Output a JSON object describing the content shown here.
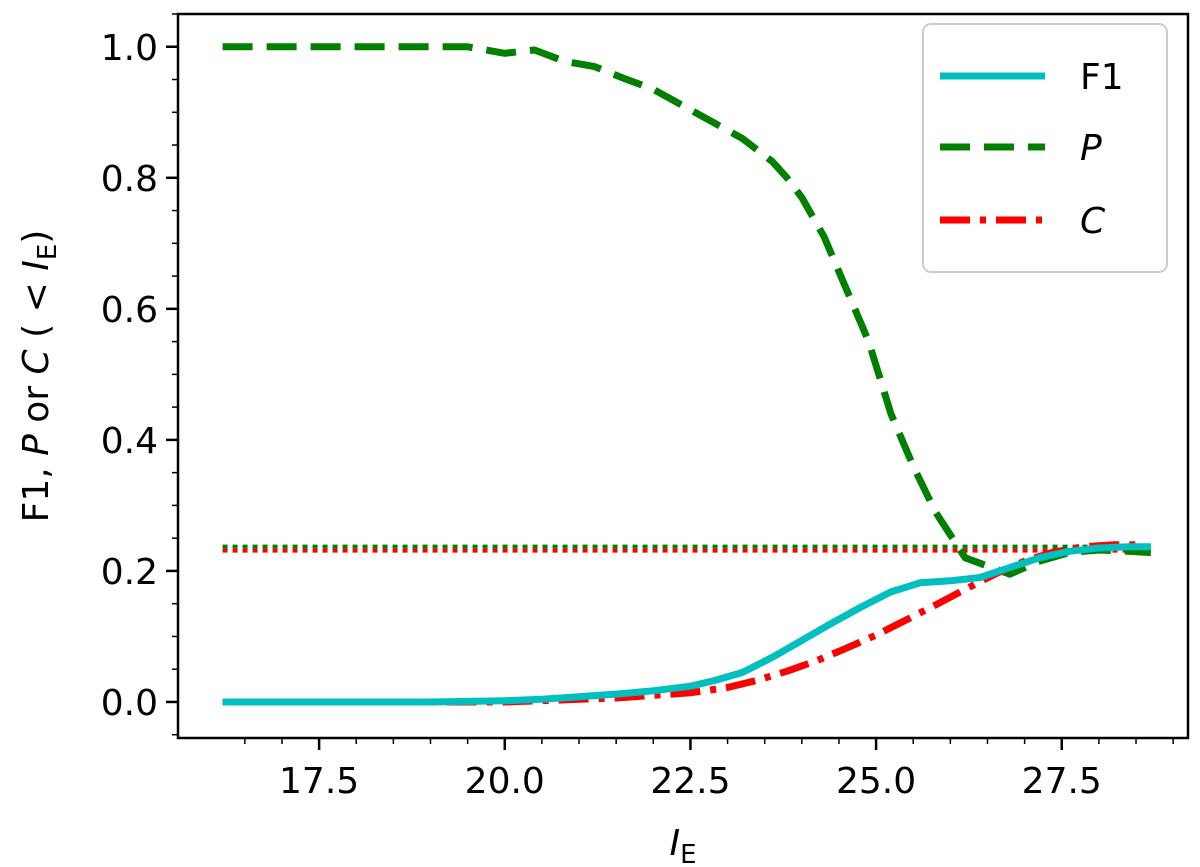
{
  "chart_data": {
    "type": "line",
    "xlabel": {
      "main": "I",
      "sub": "E"
    },
    "ylabel": {
      "p1": "F1, ",
      "p2": "P",
      "p3": " or ",
      "p4": "C",
      "p5": " ( < ",
      "p6": "I",
      "p7": "E",
      "p8": ")"
    },
    "xlim": [
      15.6,
      29.2
    ],
    "ylim": [
      -0.055,
      1.05
    ],
    "xticks": [
      17.5,
      20.0,
      22.5,
      25.0,
      27.5
    ],
    "xtick_labels": [
      "17.5",
      "20.0",
      "22.5",
      "25.0",
      "27.5"
    ],
    "yticks": [
      0.0,
      0.2,
      0.4,
      0.6,
      0.8,
      1.0
    ],
    "ytick_labels": [
      "0.0",
      "0.2",
      "0.4",
      "0.6",
      "0.8",
      "1.0"
    ],
    "grid": false,
    "legend_position": "top-right",
    "series": [
      {
        "name": "F1",
        "color": "#00bfbf",
        "style": "solid",
        "x": [
          16.2,
          17.0,
          18.0,
          19.0,
          20.0,
          20.5,
          21.0,
          21.5,
          22.0,
          22.5,
          22.8,
          23.2,
          23.6,
          24.0,
          24.4,
          24.8,
          25.2,
          25.6,
          26.0,
          26.4,
          26.8,
          27.2,
          27.6,
          28.0,
          28.4,
          28.7
        ],
        "y": [
          0.0,
          0.0,
          0.0,
          0.0,
          0.002,
          0.004,
          0.008,
          0.012,
          0.017,
          0.024,
          0.032,
          0.045,
          0.068,
          0.094,
          0.12,
          0.145,
          0.168,
          0.182,
          0.185,
          0.19,
          0.205,
          0.22,
          0.23,
          0.235,
          0.237,
          0.237
        ]
      },
      {
        "name": "P",
        "color": "#007f00",
        "style": "dashed",
        "x": [
          16.2,
          17.0,
          18.0,
          19.0,
          19.5,
          20.0,
          20.4,
          20.8,
          21.2,
          21.6,
          22.0,
          22.4,
          22.8,
          23.2,
          23.6,
          23.8,
          24.0,
          24.3,
          24.6,
          24.9,
          25.2,
          25.5,
          25.8,
          26.2,
          26.8,
          27.2,
          27.6,
          28.0,
          28.4,
          28.7
        ],
        "y": [
          1.0,
          1.0,
          1.0,
          1.0,
          1.0,
          0.99,
          0.995,
          0.978,
          0.97,
          0.952,
          0.935,
          0.91,
          0.885,
          0.86,
          0.825,
          0.8,
          0.77,
          0.71,
          0.63,
          0.55,
          0.44,
          0.36,
          0.29,
          0.22,
          0.195,
          0.215,
          0.228,
          0.232,
          0.23,
          0.228
        ]
      },
      {
        "name": "C",
        "color": "#ff0000",
        "style": "dashdot",
        "x": [
          16.2,
          17.0,
          18.0,
          19.0,
          20.0,
          20.5,
          21.0,
          21.5,
          22.0,
          22.5,
          23.0,
          23.4,
          23.8,
          24.2,
          24.6,
          25.0,
          25.4,
          25.8,
          26.2,
          26.6,
          27.0,
          27.4,
          27.8,
          28.2,
          28.6
        ],
        "y": [
          0.0,
          0.0,
          0.0,
          0.0,
          0.0,
          0.002,
          0.004,
          0.006,
          0.01,
          0.014,
          0.022,
          0.033,
          0.047,
          0.063,
          0.082,
          0.102,
          0.125,
          0.148,
          0.172,
          0.195,
          0.215,
          0.229,
          0.237,
          0.24,
          0.24
        ]
      }
    ],
    "reference_lines": [
      {
        "y": 0.237,
        "color": "#007f00",
        "style": "dotted",
        "x_start": 16.2,
        "x_end": 28.7
      },
      {
        "y": 0.231,
        "color": "#ff0000",
        "style": "dotted",
        "x_start": 16.2,
        "x_end": 28.7
      }
    ],
    "legend": [
      {
        "label": "F1",
        "italic": false,
        "color": "#00bfbf",
        "style": "solid"
      },
      {
        "label": "P",
        "italic": true,
        "color": "#007f00",
        "style": "dashed"
      },
      {
        "label": "C",
        "italic": true,
        "color": "#ff0000",
        "style": "dashdot"
      }
    ]
  }
}
